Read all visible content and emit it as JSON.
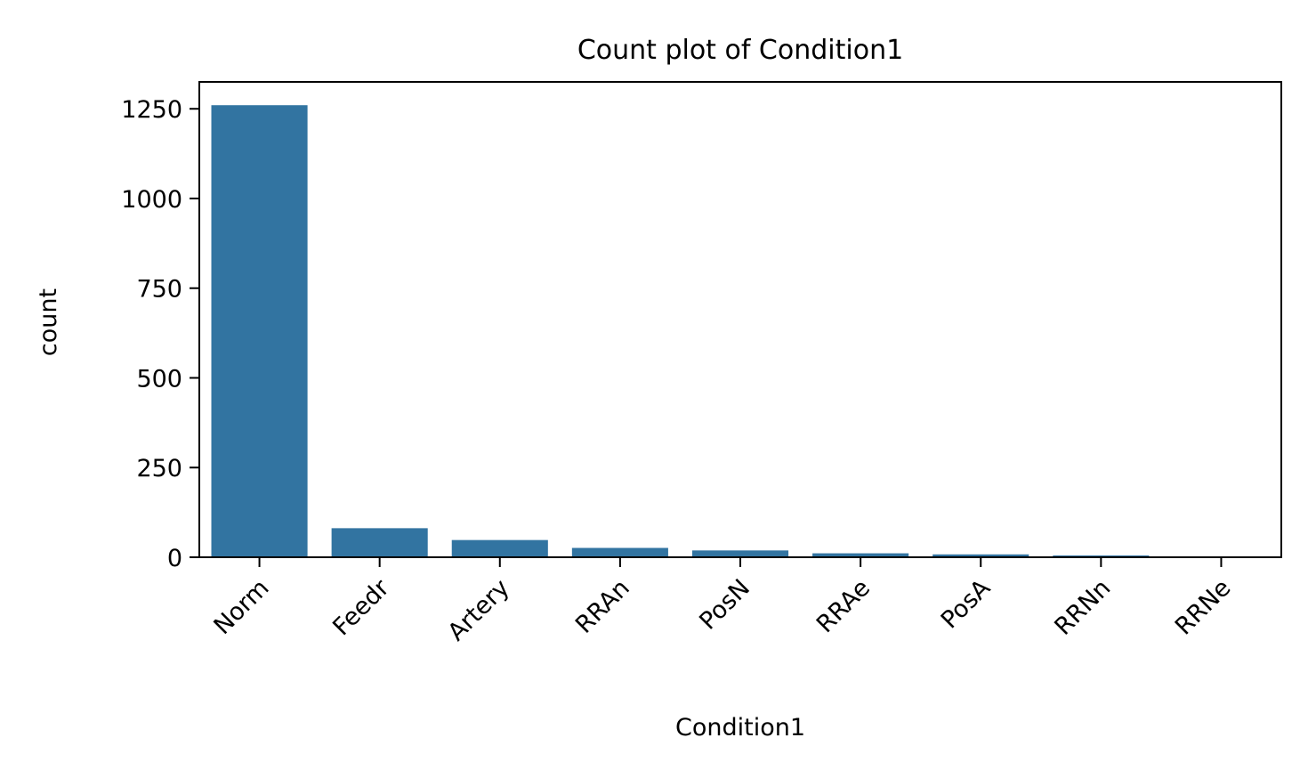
{
  "chart_data": {
    "type": "bar",
    "title": "Count plot of Condition1",
    "xlabel": "Condition1",
    "ylabel": "count",
    "categories": [
      "Norm",
      "Feedr",
      "Artery",
      "RRAn",
      "PosN",
      "RRAe",
      "PosA",
      "RRNn",
      "RRNe"
    ],
    "values": [
      1260,
      81,
      48,
      26,
      19,
      11,
      8,
      5,
      2
    ],
    "ylim": [
      0,
      1325
    ],
    "yticks": [
      0,
      250,
      500,
      750,
      1000,
      1250
    ],
    "ytick_labels": [
      "0",
      "250",
      "500",
      "750",
      "1000",
      "1250"
    ],
    "grid": false,
    "legend": "none",
    "bar_color": "#3274a1",
    "x_tick_rotation": -45
  }
}
